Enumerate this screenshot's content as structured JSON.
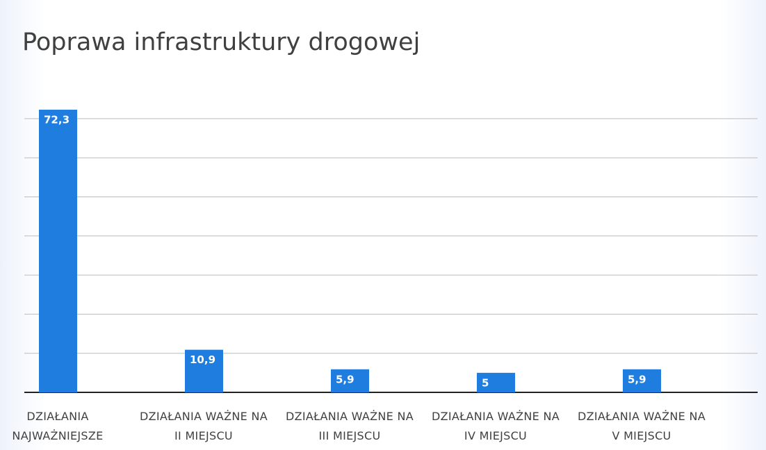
{
  "chart_data": {
    "type": "bar",
    "title": "Poprawa infrastruktury drogowej",
    "categories": [
      "DZIAŁANIA NAJWAŻNIEJSZE",
      "DZIAŁANIA WAŻNE NA II MIEJSCU",
      "DZIAŁANIA WAŻNE NA III MIEJSCU",
      "DZIAŁANIA WAŻNE NA IV MIEJSCU",
      "DZIAŁANIA WAŻNE NA V MIEJSCU"
    ],
    "values": [
      72.3,
      10.9,
      5.9,
      5,
      5.9
    ],
    "value_labels": [
      "72,3",
      "10,9",
      "5,9",
      "5",
      "5,9"
    ],
    "color": "#1f7de0",
    "ylim": [
      0,
      75
    ],
    "yticks": [
      0,
      10,
      20,
      30,
      40,
      50,
      60,
      70
    ],
    "grid": true
  }
}
